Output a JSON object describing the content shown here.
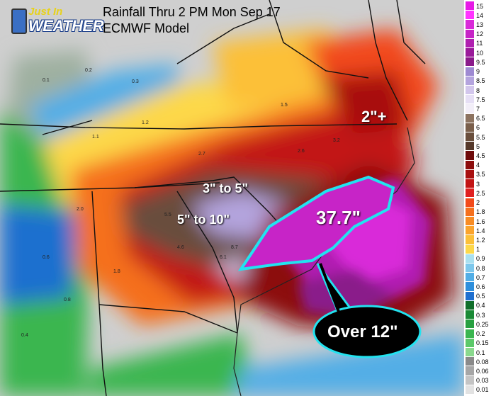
{
  "logo": {
    "line1": "Just In",
    "line2": "WEATHER"
  },
  "title": {
    "line1": "Rainfall Thru 2 PM Mon Sep 17",
    "line2": "ECMWF Model"
  },
  "annotations": {
    "over_2": "2\"+",
    "range_3_5": "3\" to 5\"",
    "range_5_10": "5\" to 10\"",
    "max": "37.7\"",
    "callout": "Over 12\""
  },
  "sample_values": [
    "0.2",
    "0.3",
    "0.1",
    "1.1",
    "1.5",
    "2.0",
    "2.7",
    "3.2",
    "4.6",
    "5.5",
    "6.1",
    "8.7",
    "0.4",
    "0.6",
    "0.8",
    "1.2",
    "1.8",
    "2.6"
  ],
  "legend": [
    {
      "label": "15",
      "color": "#e619e6"
    },
    {
      "label": "14",
      "color": "#ff33ff"
    },
    {
      "label": "13",
      "color": "#d92ad9"
    },
    {
      "label": "12",
      "color": "#c724c7"
    },
    {
      "label": "11",
      "color": "#b01fb0"
    },
    {
      "label": "10",
      "color": "#9a1a9a"
    },
    {
      "label": "9.5",
      "color": "#8a1a8a"
    },
    {
      "label": "9",
      "color": "#9e8ad2"
    },
    {
      "label": "8.5",
      "color": "#b4a4de"
    },
    {
      "label": "8",
      "color": "#d2c6ec"
    },
    {
      "label": "7.5",
      "color": "#e6dff5"
    },
    {
      "label": "7",
      "color": "#f2eef8"
    },
    {
      "label": "6.5",
      "color": "#8c7360"
    },
    {
      "label": "6",
      "color": "#7a5f4b"
    },
    {
      "label": "5.5",
      "color": "#694e3c"
    },
    {
      "label": "5",
      "color": "#55382a"
    },
    {
      "label": "4.5",
      "color": "#6e0a0a"
    },
    {
      "label": "4",
      "color": "#8c0d0d"
    },
    {
      "label": "3.5",
      "color": "#a81010"
    },
    {
      "label": "3",
      "color": "#c21414"
    },
    {
      "label": "2.5",
      "color": "#e02020"
    },
    {
      "label": "2",
      "color": "#f24a1a"
    },
    {
      "label": "1.8",
      "color": "#f5701e"
    },
    {
      "label": "1.6",
      "color": "#f88c24"
    },
    {
      "label": "1.4",
      "color": "#fba42c"
    },
    {
      "label": "1.2",
      "color": "#fcc038"
    },
    {
      "label": "1",
      "color": "#fdd84a"
    },
    {
      "label": "0.9",
      "color": "#a9e0f0"
    },
    {
      "label": "0.8",
      "color": "#7ec8ec"
    },
    {
      "label": "0.7",
      "color": "#52aee6"
    },
    {
      "label": "0.6",
      "color": "#2e8fdc"
    },
    {
      "label": "0.5",
      "color": "#1e6fcf"
    },
    {
      "label": "0.4",
      "color": "#0f6e2a"
    },
    {
      "label": "0.3",
      "color": "#1a8a35"
    },
    {
      "label": "0.25",
      "color": "#27a040"
    },
    {
      "label": "0.2",
      "color": "#3ab64f"
    },
    {
      "label": "0.15",
      "color": "#5cc96a"
    },
    {
      "label": "0.1",
      "color": "#8ad98e"
    },
    {
      "label": "0.08",
      "color": "#8a8a8a"
    },
    {
      "label": "0.06",
      "color": "#a6a6a6"
    },
    {
      "label": "0.03",
      "color": "#c4c4c4"
    },
    {
      "label": "0.01",
      "color": "#e2e2e2"
    }
  ]
}
